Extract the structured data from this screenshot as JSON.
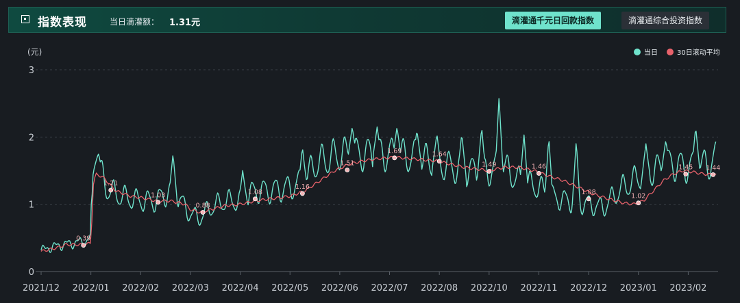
{
  "header": {
    "title": "指数表现",
    "amount_label": "当日滴灌额：",
    "amount_value": "1.31元",
    "buttons": [
      {
        "label": "滴灌通千元日回款指数",
        "active": true
      },
      {
        "label": "滴灌通综合投资指数",
        "active": false
      }
    ]
  },
  "colors": {
    "background": "#181c21",
    "daily": "#6fe3cc",
    "rolling": "#e8626b",
    "accent": "#6fe3cc"
  },
  "chart_data": {
    "type": "line",
    "ylabel": "(元)",
    "ylim": [
      0,
      3
    ],
    "yticks": [
      0,
      1,
      2,
      3
    ],
    "x_tick_labels": [
      "2021/12",
      "2022/01",
      "2022/02",
      "2022/03",
      "2022/04",
      "2022/05",
      "2022/06",
      "2022/07",
      "2022/08",
      "2022/10",
      "2022/11",
      "2022/12",
      "2023/01",
      "2023/02"
    ],
    "x_ticks_month": [
      0,
      1,
      2,
      3,
      4,
      5,
      6,
      7,
      8,
      9,
      10,
      11,
      12,
      13
    ],
    "xlim_month": [
      0,
      13.6
    ],
    "legend": {
      "position": "top-right",
      "items": [
        "当日",
        "30日滚动平均"
      ]
    },
    "grid": "dashed-horizontal",
    "series": [
      {
        "name": "当日",
        "style": "oscillating-daily",
        "points": [
          [
            0,
            0.32
          ],
          [
            0.3,
            0.38
          ],
          [
            0.6,
            0.42
          ],
          [
            0.9,
            0.45
          ],
          [
            1.0,
            0.5
          ],
          [
            1.05,
            1.55
          ],
          [
            1.15,
            1.6
          ],
          [
            1.3,
            1.25
          ],
          [
            1.5,
            1.15
          ],
          [
            1.7,
            1.1
          ],
          [
            2.0,
            1.05
          ],
          [
            2.3,
            1.05
          ],
          [
            2.6,
            1.2
          ],
          [
            2.8,
            1.05
          ],
          [
            3.0,
            0.85
          ],
          [
            3.2,
            0.8
          ],
          [
            3.4,
            0.95
          ],
          [
            3.7,
            1.05
          ],
          [
            4.0,
            1.05
          ],
          [
            4.3,
            1.2
          ],
          [
            4.6,
            1.2
          ],
          [
            5.0,
            1.25
          ],
          [
            5.3,
            1.35
          ],
          [
            5.5,
            1.6
          ],
          [
            6.0,
            1.75
          ],
          [
            6.5,
            1.75
          ],
          [
            7.0,
            1.75
          ],
          [
            7.5,
            1.7
          ],
          [
            8.0,
            1.6
          ],
          [
            8.5,
            1.5
          ],
          [
            9.0,
            1.5
          ],
          [
            9.3,
            1.55
          ],
          [
            9.6,
            1.35
          ],
          [
            10.0,
            1.25
          ],
          [
            10.3,
            1.1
          ],
          [
            10.6,
            1.05
          ],
          [
            11.0,
            1.0
          ],
          [
            11.3,
            0.95
          ],
          [
            11.6,
            1.2
          ],
          [
            12.0,
            1.4
          ],
          [
            12.3,
            1.5
          ],
          [
            12.6,
            1.6
          ],
          [
            13.0,
            1.55
          ],
          [
            13.5,
            1.6
          ]
        ],
        "peaks": [
          [
            1.15,
            1.75
          ],
          [
            2.65,
            1.75
          ],
          [
            4.05,
            1.5
          ],
          [
            5.25,
            1.85
          ],
          [
            6.25,
            2.15
          ],
          [
            6.75,
            2.15
          ],
          [
            7.15,
            2.15
          ],
          [
            7.55,
            2.1
          ],
          [
            7.95,
            2.05
          ],
          [
            8.45,
            2.05
          ],
          [
            8.85,
            2.15
          ],
          [
            9.2,
            2.6
          ],
          [
            9.7,
            2.05
          ],
          [
            10.2,
            2.0
          ],
          [
            10.75,
            1.95
          ],
          [
            12.15,
            1.9
          ],
          [
            12.55,
            1.95
          ],
          [
            13.15,
            2.15
          ],
          [
            13.55,
            1.95
          ]
        ]
      },
      {
        "name": "30日滚动平均",
        "points": [
          [
            0,
            0.3
          ],
          [
            0.3,
            0.35
          ],
          [
            0.5,
            0.4
          ],
          [
            0.8,
            0.4
          ],
          [
            1.0,
            0.42
          ],
          [
            1.05,
            1.3
          ],
          [
            1.1,
            1.45
          ],
          [
            1.25,
            1.4
          ],
          [
            1.5,
            1.2
          ],
          [
            1.8,
            1.12
          ],
          [
            2.0,
            1.1
          ],
          [
            2.3,
            1.05
          ],
          [
            2.6,
            1.05
          ],
          [
            2.9,
            1.0
          ],
          [
            3.0,
            0.92
          ],
          [
            3.2,
            0.88
          ],
          [
            3.4,
            0.92
          ],
          [
            3.7,
            0.98
          ],
          [
            4.0,
            1.0
          ],
          [
            4.3,
            1.05
          ],
          [
            4.6,
            1.08
          ],
          [
            5.0,
            1.12
          ],
          [
            5.3,
            1.2
          ],
          [
            5.6,
            1.35
          ],
          [
            5.9,
            1.5
          ],
          [
            6.2,
            1.6
          ],
          [
            6.5,
            1.65
          ],
          [
            6.8,
            1.68
          ],
          [
            7.1,
            1.7
          ],
          [
            7.4,
            1.68
          ],
          [
            7.7,
            1.66
          ],
          [
            8.0,
            1.64
          ],
          [
            8.2,
            1.6
          ],
          [
            8.5,
            1.55
          ],
          [
            8.8,
            1.52
          ],
          [
            9.0,
            1.5
          ],
          [
            9.3,
            1.55
          ],
          [
            9.6,
            1.55
          ],
          [
            9.9,
            1.5
          ],
          [
            10.2,
            1.42
          ],
          [
            10.5,
            1.35
          ],
          [
            10.8,
            1.25
          ],
          [
            11.1,
            1.15
          ],
          [
            11.4,
            1.08
          ],
          [
            11.7,
            1.02
          ],
          [
            11.9,
            1.0
          ],
          [
            12.1,
            1.05
          ],
          [
            12.3,
            1.2
          ],
          [
            12.5,
            1.35
          ],
          [
            12.7,
            1.45
          ],
          [
            12.9,
            1.5
          ],
          [
            13.1,
            1.48
          ],
          [
            13.3,
            1.45
          ],
          [
            13.5,
            1.44
          ]
        ]
      }
    ],
    "annotations": [
      {
        "x": 0.85,
        "y": 0.39,
        "label": "0.39"
      },
      {
        "x": 1.4,
        "y": 1.21,
        "label": "1.21"
      },
      {
        "x": 2.35,
        "y": 1.03,
        "label": "1.03"
      },
      {
        "x": 3.25,
        "y": 0.88,
        "label": "0.88"
      },
      {
        "x": 4.3,
        "y": 1.08,
        "label": "1.08"
      },
      {
        "x": 5.25,
        "y": 1.16,
        "label": "1.16"
      },
      {
        "x": 6.15,
        "y": 1.51,
        "label": "1.51"
      },
      {
        "x": 7.1,
        "y": 1.69,
        "label": "1.69"
      },
      {
        "x": 8.0,
        "y": 1.64,
        "label": "1.64"
      },
      {
        "x": 9.0,
        "y": 1.49,
        "label": "1.49"
      },
      {
        "x": 10.0,
        "y": 1.46,
        "label": "1.46"
      },
      {
        "x": 11.0,
        "y": 1.08,
        "label": "1.08"
      },
      {
        "x": 12.0,
        "y": 1.02,
        "label": "1.02"
      },
      {
        "x": 12.95,
        "y": 1.45,
        "label": "1.45"
      },
      {
        "x": 13.5,
        "y": 1.44,
        "label": "1.44"
      }
    ]
  }
}
